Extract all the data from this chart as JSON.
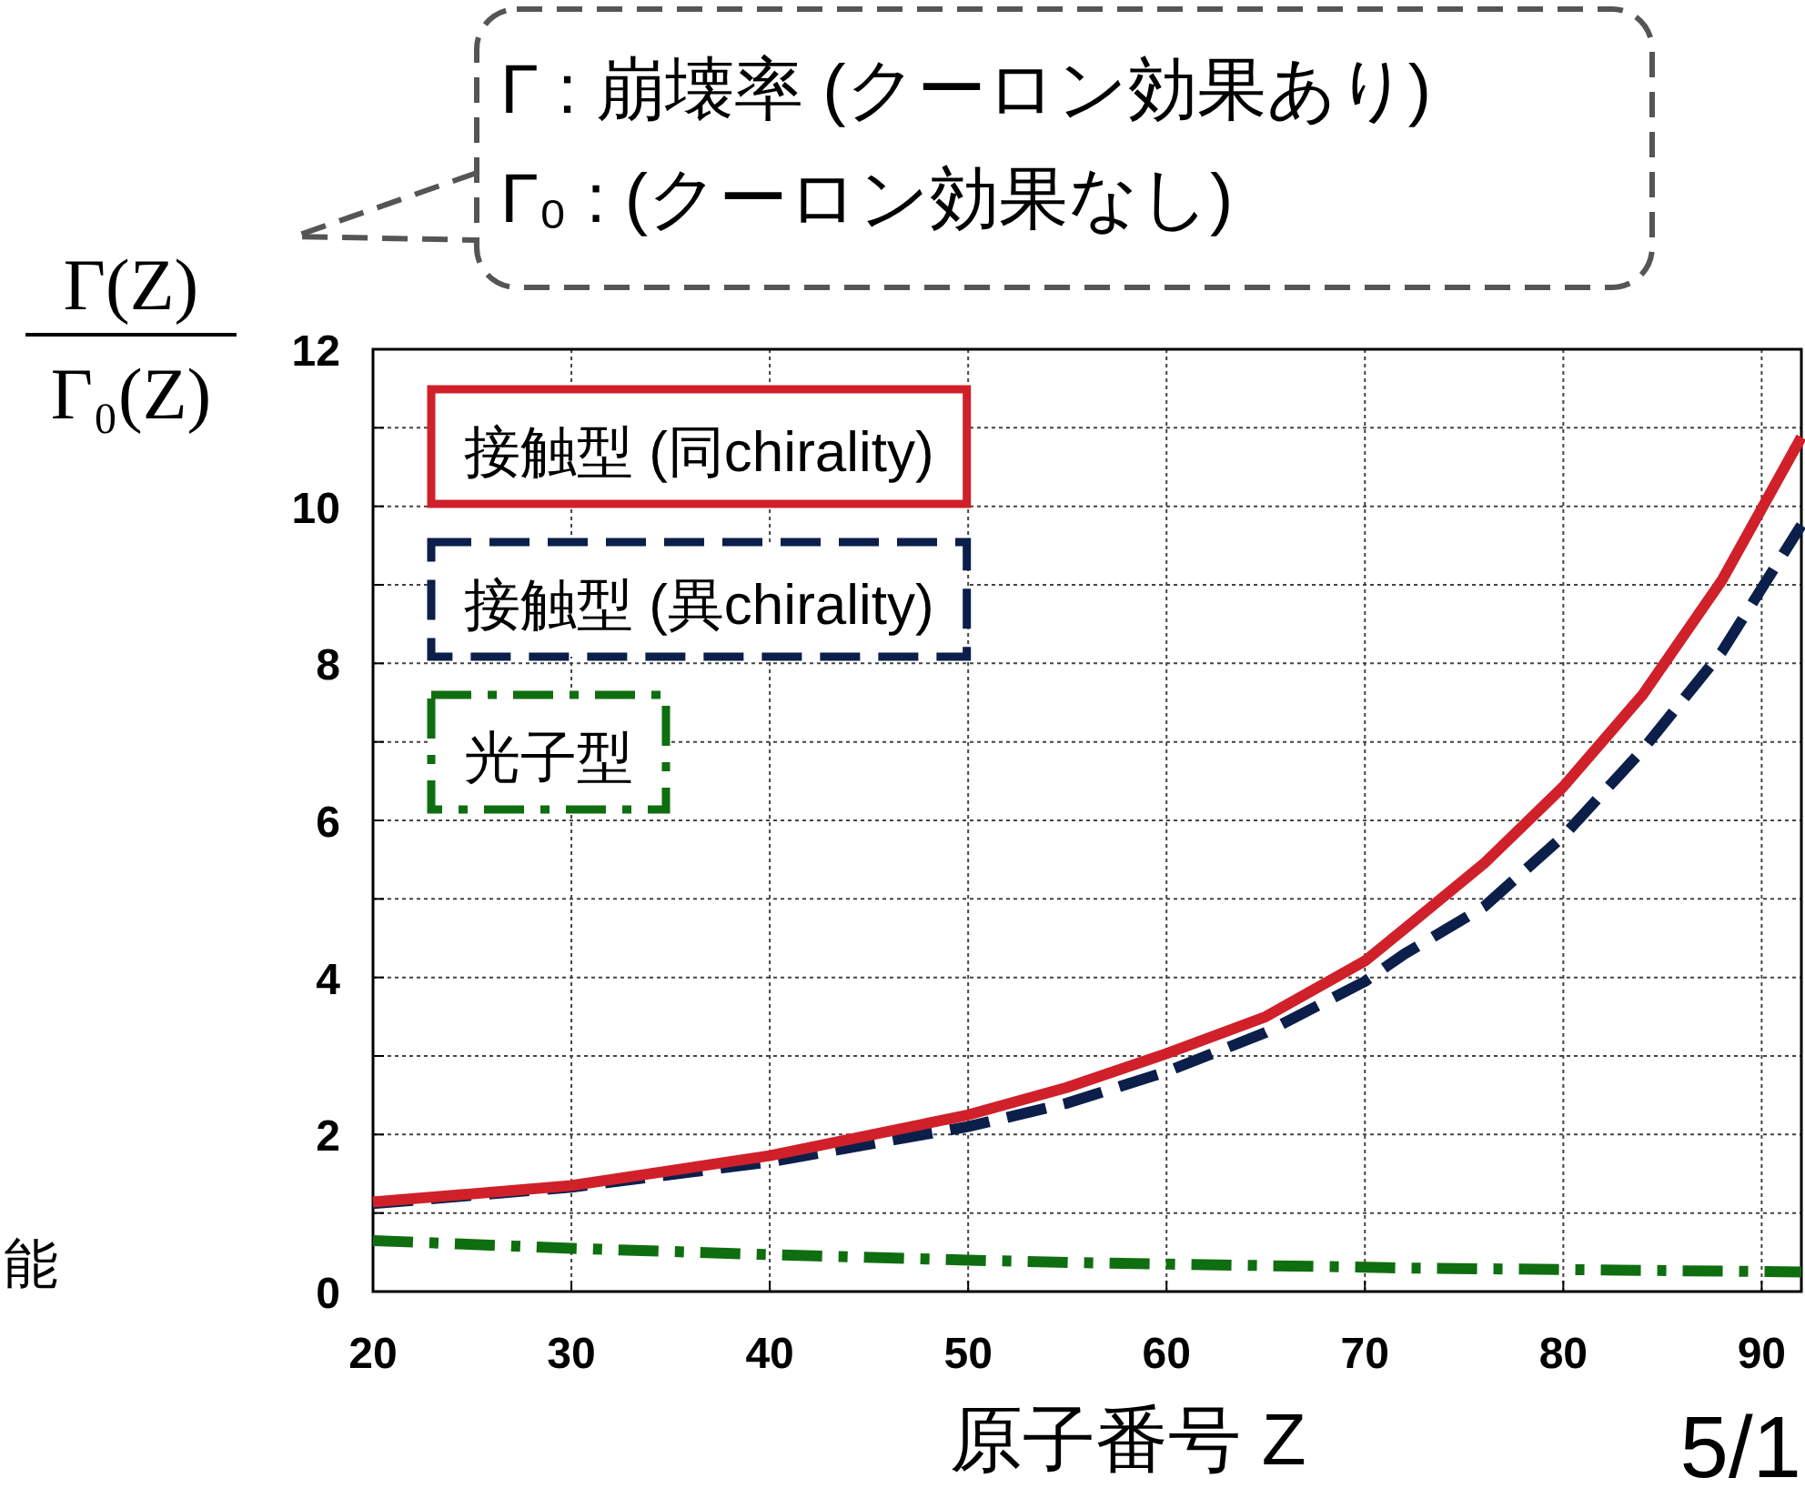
{
  "chart_data": {
    "type": "line",
    "ylabel": "Γ(Z)\nΓ₀(Z)",
    "xlabel": "原子番号 Z",
    "x": [
      20,
      30,
      40,
      50,
      55,
      60,
      65,
      70,
      72,
      76,
      80,
      84,
      88,
      92
    ],
    "series": [
      {
        "name": "接触型 (同chirality)",
        "color": "#d0202a",
        "line_style": "solid",
        "values": [
          1.14,
          1.35,
          1.73,
          2.25,
          2.6,
          3.03,
          3.5,
          4.21,
          4.62,
          5.45,
          6.43,
          7.6,
          9.06,
          10.88
        ]
      },
      {
        "name": "接触型 (異chirality)",
        "color": "#0b1f4a",
        "line_style": "dashed",
        "values": [
          1.12,
          1.33,
          1.65,
          2.1,
          2.4,
          2.8,
          3.3,
          3.95,
          4.3,
          4.9,
          5.8,
          6.9,
          8.15,
          9.76
        ]
      },
      {
        "name": "光子型",
        "color": "#0f6e0f",
        "line_style": "dashdot",
        "values": [
          0.65,
          0.55,
          0.47,
          0.4,
          0.37,
          0.35,
          0.33,
          0.31,
          0.3,
          0.29,
          0.28,
          0.27,
          0.26,
          0.25
        ]
      }
    ],
    "xlim": [
      20,
      92
    ],
    "ylim": [
      0,
      12
    ],
    "xticks": [
      20,
      30,
      40,
      50,
      60,
      70,
      80,
      90
    ],
    "yticks": [
      0,
      {
        "value": 1,
        "label": null
      },
      2,
      {
        "value": 3,
        "label": null
      },
      4,
      {
        "value": 5,
        "label": null
      },
      6,
      {
        "value": 7,
        "label": null
      },
      8,
      {
        "value": 9,
        "label": null
      },
      10,
      {
        "value": 11,
        "label": null
      },
      12
    ],
    "grid": true,
    "legend": "top left",
    "annotations": [
      "Γ : 崩壊率 (クーロン効果あり)",
      "Γ₀ : (クーロン効果なし)",
      "能",
      "5/1"
    ]
  }
}
